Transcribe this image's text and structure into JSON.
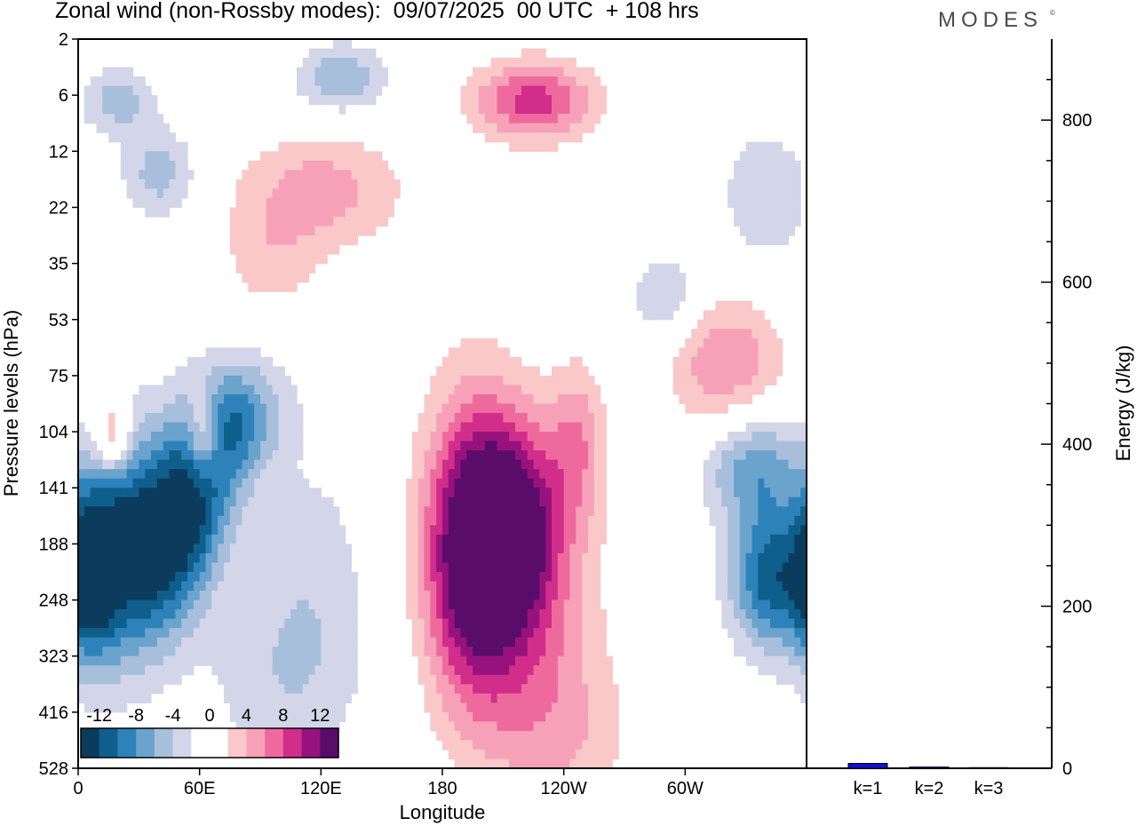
{
  "header": {
    "title": "Zonal wind (non-Rossby modes):  09/07/2025  00 UTC  + 108 hrs",
    "brand": "MODES",
    "brand_mark": "©"
  },
  "colors": {
    "neg": [
      "#0b3c5d",
      "#0f5f8d",
      "#2e82ba",
      "#6aa3cc",
      "#a8bfdc",
      "#d3d6e8"
    ],
    "pos": [
      "#fac8c8",
      "#f7a1b9",
      "#ee6a9c",
      "#d12d8a",
      "#97127c",
      "#5a0c6b"
    ],
    "bar": "#1010d0"
  },
  "chart_data": [
    {
      "type": "heatmap",
      "title": "Zonal wind (non-Rossby modes):  09/07/2025  00 UTC  + 108 hrs",
      "xlabel": "Longitude",
      "ylabel": "Pressure levels (hPa)",
      "x_ticks": [
        "0",
        "60E",
        "120E",
        "180",
        "120W",
        "60W"
      ],
      "x_tick_lon": [
        0,
        60,
        120,
        180,
        240,
        300
      ],
      "xlim": [
        0,
        360
      ],
      "y_ticks": [
        "2",
        "6",
        "12",
        "22",
        "35",
        "53",
        "75",
        "104",
        "141",
        "188",
        "248",
        "323",
        "416",
        "528"
      ],
      "colorbar_labels": [
        "-12",
        "-8",
        "-4",
        "0",
        "4",
        "8",
        "12"
      ],
      "colorbar_bins": 12,
      "features": [
        {
          "lon": 50,
          "level": 8.6,
          "dlon": 24,
          "dlev": 2.1,
          "value": -15,
          "tilt": 0.55
        },
        {
          "lon": 18,
          "level": 8.9,
          "dlon": 19,
          "dlev": 2.0,
          "value": -10,
          "tilt": 0.2
        },
        {
          "lon": 5,
          "level": 9.5,
          "dlon": 12,
          "dlev": 1.5,
          "value": -8,
          "tilt": 0
        },
        {
          "lon": 80,
          "level": 6.8,
          "dlon": 24,
          "dlev": 1.0,
          "value": -6,
          "tilt": 0.3
        },
        {
          "lon": 20,
          "level": 1.1,
          "dlon": 18,
          "dlev": 0.6,
          "value": -5,
          "tilt": 0
        },
        {
          "lon": 130,
          "level": 0.7,
          "dlon": 22,
          "dlev": 0.6,
          "value": -6,
          "tilt": 0
        },
        {
          "lon": 40,
          "level": 2.4,
          "dlon": 18,
          "dlev": 0.8,
          "value": -5,
          "tilt": 0
        },
        {
          "lon": 195,
          "level": 9.1,
          "dlon": 24,
          "dlev": 2.6,
          "value": 15,
          "tilt": 0
        },
        {
          "lon": 218,
          "level": 8.6,
          "dlon": 22,
          "dlev": 1.8,
          "value": 9,
          "tilt": 0
        },
        {
          "lon": 225,
          "level": 10.2,
          "dlon": 32,
          "dlev": 2.6,
          "value": 5,
          "tilt": 0
        },
        {
          "lon": 247,
          "level": 7.2,
          "dlon": 14,
          "dlev": 1.4,
          "value": 5,
          "tilt": 0
        },
        {
          "lon": 225,
          "level": 1.1,
          "dlon": 30,
          "dlev": 0.7,
          "value": 9,
          "tilt": 0
        },
        {
          "lon": 120,
          "level": 2.7,
          "dlon": 40,
          "dlev": 1.0,
          "value": 5,
          "tilt": 0
        },
        {
          "lon": 320,
          "level": 5.8,
          "dlon": 28,
          "dlev": 1.2,
          "value": 6,
          "tilt": 0
        },
        {
          "lon": 62,
          "level": 7.1,
          "dlon": 9,
          "dlev": 0.8,
          "value": 8,
          "tilt": 0
        },
        {
          "lon": 17,
          "level": 7.1,
          "dlon": 9,
          "dlev": 0.7,
          "value": 7,
          "tilt": 0
        },
        {
          "lon": 342,
          "level": 9.6,
          "dlon": 20,
          "dlev": 1.3,
          "value": -11,
          "tilt": 0
        },
        {
          "lon": 334,
          "level": 7.6,
          "dlon": 25,
          "dlev": 1.0,
          "value": -7,
          "tilt": 0
        },
        {
          "lon": 340,
          "level": 2.8,
          "dlon": 22,
          "dlev": 1.2,
          "value": -4,
          "tilt": 0
        },
        {
          "lon": 290,
          "level": 4.6,
          "dlon": 18,
          "dlev": 0.8,
          "value": -4,
          "tilt": 0
        },
        {
          "lon": 240,
          "level": 12.5,
          "dlon": 35,
          "dlev": 1.6,
          "value": 3,
          "tilt": 0
        },
        {
          "lon": 115,
          "level": 9.5,
          "dlon": 30,
          "dlev": 2.2,
          "value": -3,
          "tilt": 0
        },
        {
          "lon": 100,
          "level": 11.5,
          "dlon": 40,
          "dlev": 1.6,
          "value": -3,
          "tilt": 0
        },
        {
          "lon": 95,
          "level": 4.0,
          "dlon": 25,
          "dlev": 1.0,
          "value": 3,
          "tilt": 0
        }
      ]
    },
    {
      "type": "bar",
      "categories": [
        "k=1",
        "k=2",
        "k=3"
      ],
      "values": [
        6,
        1.5,
        0.8
      ],
      "ylabel": "Energy (J/kg)",
      "ylim": [
        0,
        900
      ],
      "y_ticks": [
        0,
        200,
        400,
        600,
        800
      ]
    }
  ]
}
